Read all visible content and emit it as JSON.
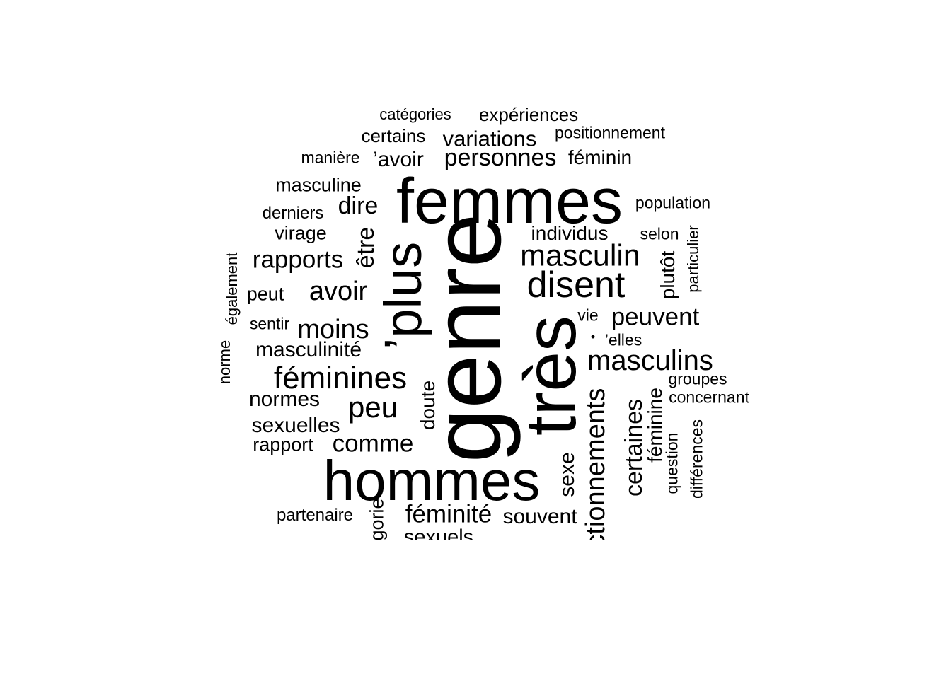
{
  "words": [
    {
      "id": "categories",
      "text": "catégories",
      "rotated": false
    },
    {
      "id": "experiences",
      "text": "expériences",
      "rotated": false
    },
    {
      "id": "certains",
      "text": "certains",
      "rotated": false
    },
    {
      "id": "variations",
      "text": "variations",
      "rotated": false
    },
    {
      "id": "positionnement",
      "text": "positionnement",
      "rotated": false
    },
    {
      "id": "maniere",
      "text": "manière",
      "rotated": false
    },
    {
      "id": "avoir-apos",
      "text": "’avoir",
      "rotated": false
    },
    {
      "id": "personnes",
      "text": "personnes",
      "rotated": false
    },
    {
      "id": "feminin",
      "text": "féminin",
      "rotated": false
    },
    {
      "id": "masculine",
      "text": "masculine",
      "rotated": false
    },
    {
      "id": "femmes",
      "text": "femmes",
      "rotated": false
    },
    {
      "id": "dire",
      "text": "dire",
      "rotated": false
    },
    {
      "id": "population",
      "text": "population",
      "rotated": false
    },
    {
      "id": "derniers",
      "text": "derniers",
      "rotated": false
    },
    {
      "id": "virage",
      "text": "virage",
      "rotated": false
    },
    {
      "id": "individus",
      "text": "individus",
      "rotated": false
    },
    {
      "id": "selon",
      "text": "selon",
      "rotated": false
    },
    {
      "id": "particulier",
      "text": "particulier",
      "rotated": true
    },
    {
      "id": "etre",
      "text": "être",
      "rotated": true
    },
    {
      "id": "plus",
      "text": "’plus",
      "rotated": true
    },
    {
      "id": "genre",
      "text": "genre",
      "rotated": true
    },
    {
      "id": "masculin",
      "text": "masculin",
      "rotated": false
    },
    {
      "id": "rapports",
      "text": "rapports",
      "rotated": false
    },
    {
      "id": "plutot",
      "text": "plutôt",
      "rotated": true
    },
    {
      "id": "egalement",
      "text": "également",
      "rotated": true
    },
    {
      "id": "disent",
      "text": "disent",
      "rotated": false
    },
    {
      "id": "peut",
      "text": "peut",
      "rotated": false
    },
    {
      "id": "avoir",
      "text": "avoir",
      "rotated": false
    },
    {
      "id": "tres",
      "text": "très",
      "rotated": true
    },
    {
      "id": "vie",
      "text": "vie",
      "rotated": false
    },
    {
      "id": "peuvent",
      "text": "peuvent",
      "rotated": false
    },
    {
      "id": "sentir",
      "text": "sentir",
      "rotated": false
    },
    {
      "id": "moins",
      "text": "moins",
      "rotated": false
    },
    {
      "id": "elles",
      "text": "’elles",
      "rotated": false
    },
    {
      "id": "dot",
      "text": "•",
      "rotated": false
    },
    {
      "id": "masculinite",
      "text": "masculinité",
      "rotated": false
    },
    {
      "id": "norme",
      "text": "norme",
      "rotated": true
    },
    {
      "id": "masculins",
      "text": "masculins",
      "rotated": false
    },
    {
      "id": "feminines",
      "text": "féminines",
      "rotated": false
    },
    {
      "id": "groupes",
      "text": "groupes",
      "rotated": false
    },
    {
      "id": "concernant",
      "text": "concernant",
      "rotated": false
    },
    {
      "id": "normes",
      "text": "normes",
      "rotated": false
    },
    {
      "id": "peu",
      "text": "peu",
      "rotated": false
    },
    {
      "id": "doute",
      "text": "doute",
      "rotated": true
    },
    {
      "id": "feminine",
      "text": "féminine",
      "rotated": true
    },
    {
      "id": "certaines",
      "text": "certaines",
      "rotated": true
    },
    {
      "id": "sexuelles",
      "text": "sexuelles",
      "rotated": false
    },
    {
      "id": "differences",
      "text": "différences",
      "rotated": true
    },
    {
      "id": "question",
      "text": "question",
      "rotated": true
    },
    {
      "id": "rapport",
      "text": "rapport",
      "rotated": false
    },
    {
      "id": "comme",
      "text": "comme",
      "rotated": false
    },
    {
      "id": "fonctionnements",
      "text": "fonctionnements",
      "rotated": true
    },
    {
      "id": "sexe",
      "text": "sexe",
      "rotated": true
    },
    {
      "id": "hommes",
      "text": "hommes",
      "rotated": false
    },
    {
      "id": "partenaire",
      "text": "partenaire",
      "rotated": false
    },
    {
      "id": "feminite",
      "text": "féminité",
      "rotated": false
    },
    {
      "id": "souvent",
      "text": "souvent",
      "rotated": false
    },
    {
      "id": "categorie",
      "text": "catégorie",
      "rotated": true
    },
    {
      "id": "sexuels",
      "text": "sexuels",
      "rotated": false
    }
  ]
}
